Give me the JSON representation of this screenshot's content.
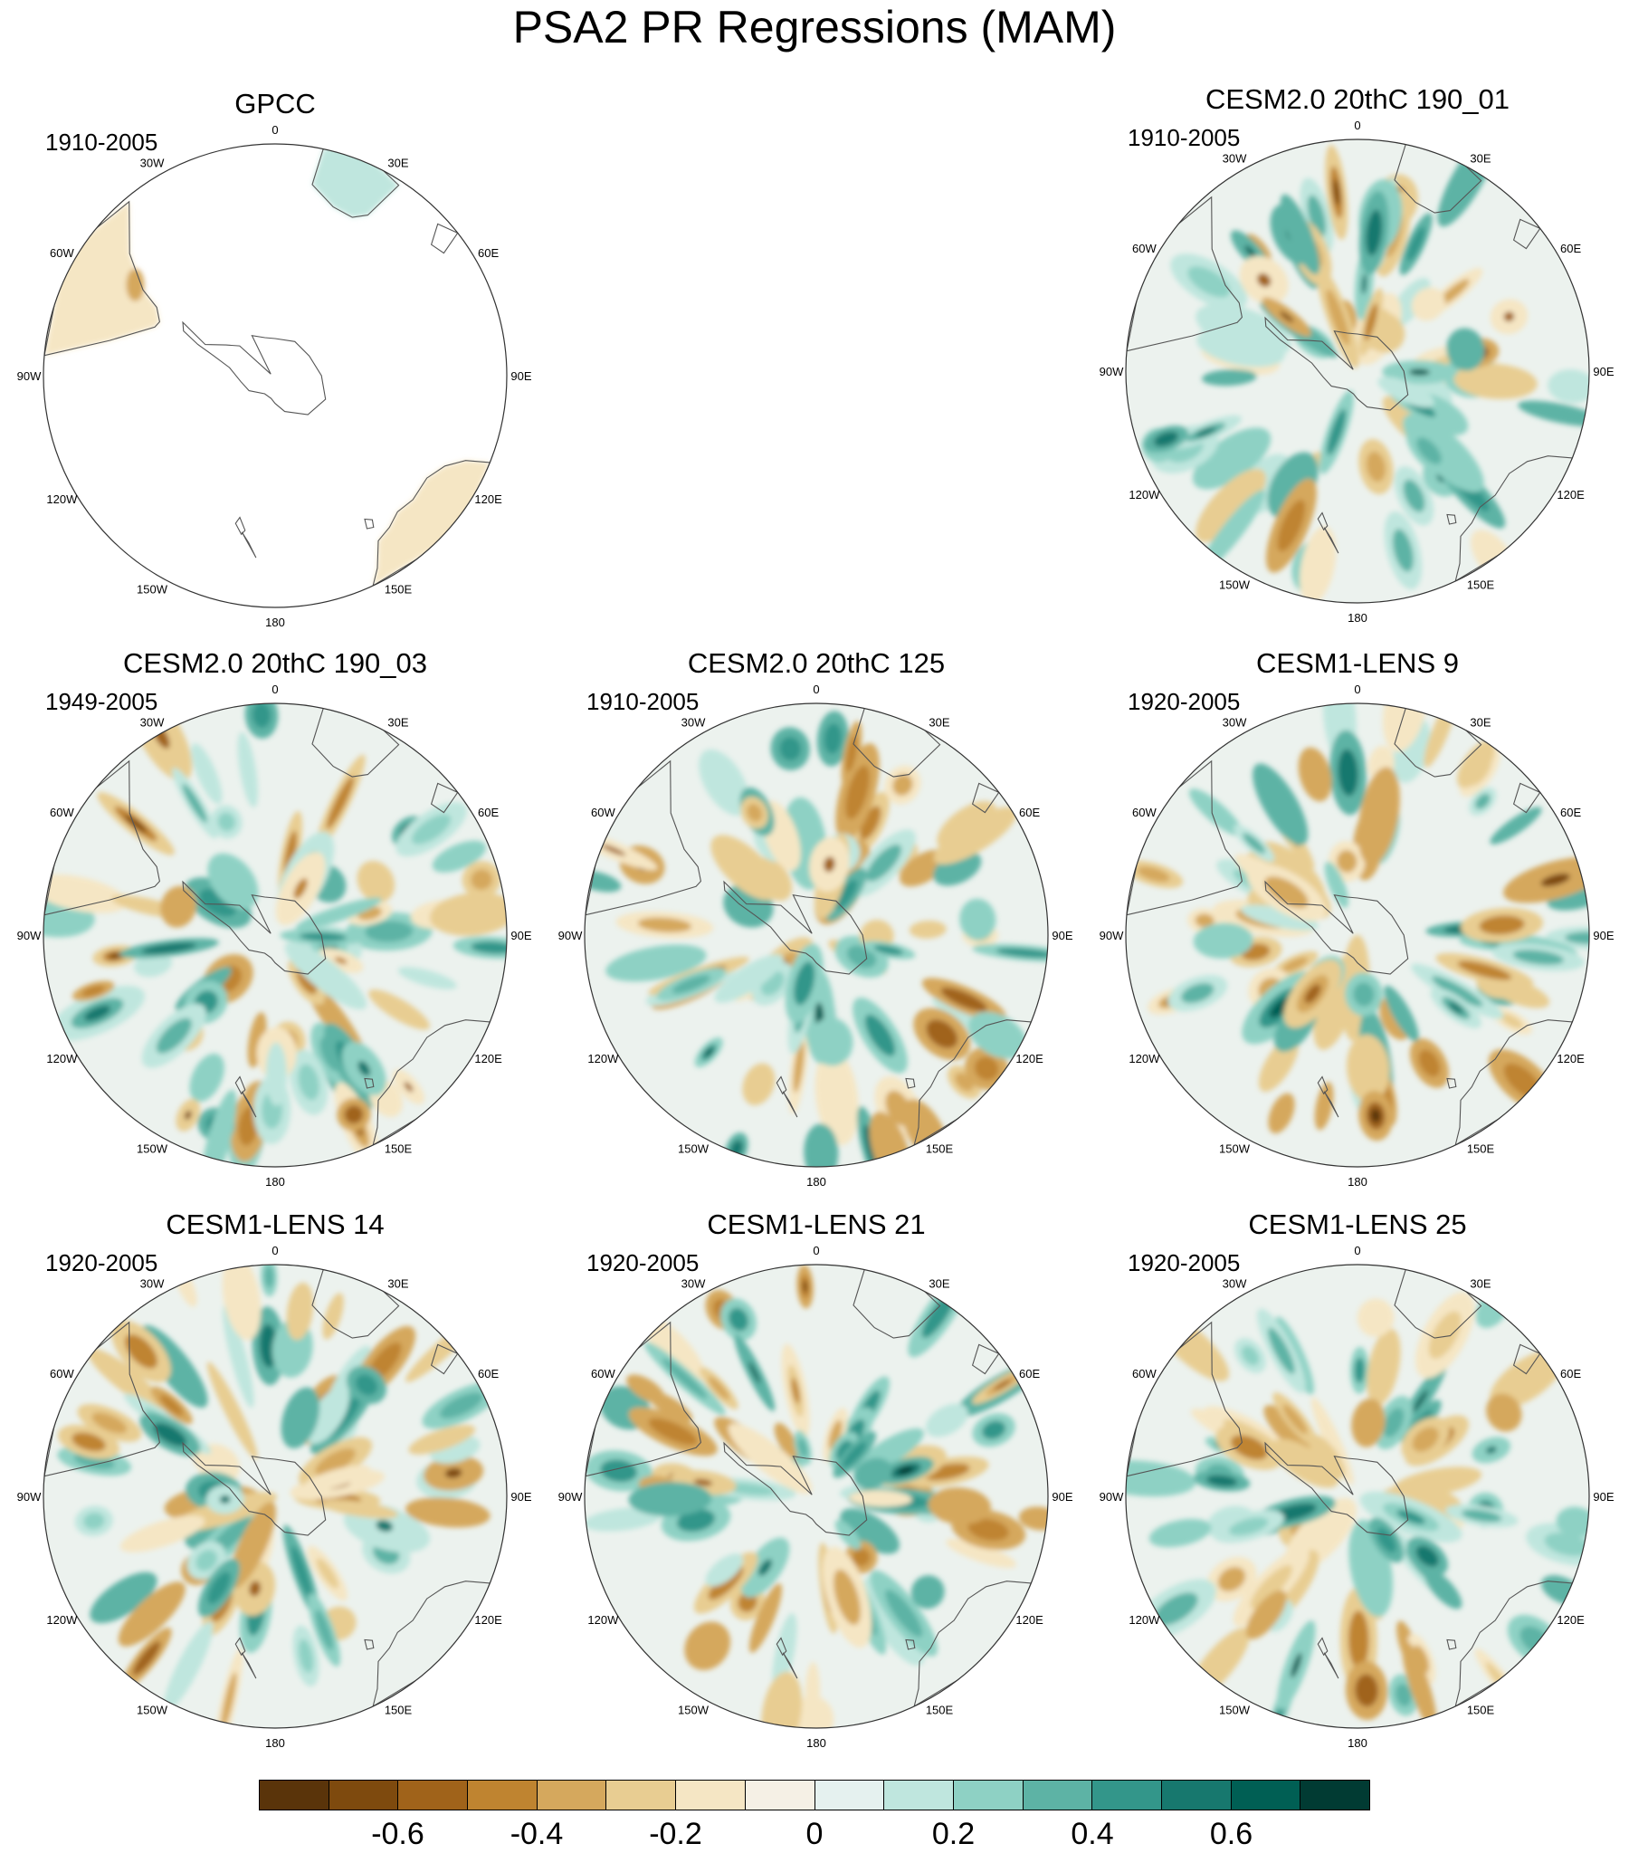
{
  "title": "PSA2 PR Regressions (MAM)",
  "longitude_labels": [
    "0",
    "30E",
    "60E",
    "90E",
    "120E",
    "150E",
    "180",
    "150W",
    "120W",
    "90W",
    "60W",
    "30W"
  ],
  "panels": [
    {
      "title": "GPCC",
      "period": "1910-2005",
      "style": "obs",
      "seed": 3
    },
    {
      "title": "CESM2.0 20thC 190_01",
      "period": "1910-2005",
      "style": "model",
      "seed": 11
    },
    {
      "title": "CESM2.0 20thC 190_03",
      "period": "1949-2005",
      "style": "model",
      "seed": 23
    },
    {
      "title": "CESM2.0 20thC 125",
      "period": "1910-2005",
      "style": "model",
      "seed": 37
    },
    {
      "title": "CESM1-LENS 9",
      "period": "1920-2005",
      "style": "model",
      "seed": 41
    },
    {
      "title": "CESM1-LENS 14",
      "period": "1920-2005",
      "style": "model",
      "seed": 53
    },
    {
      "title": "CESM1-LENS 21",
      "period": "1920-2005",
      "style": "model",
      "seed": 67
    },
    {
      "title": "CESM1-LENS 25",
      "period": "1920-2005",
      "style": "model",
      "seed": 79
    }
  ],
  "colorbar": {
    "colors": [
      "#5a340a",
      "#7e4a0e",
      "#a0631a",
      "#bf8430",
      "#d5a85d",
      "#e8cd92",
      "#f5e6c4",
      "#f5f0e5",
      "#e5f1ef",
      "#bfe6de",
      "#8ed1c4",
      "#5db3a5",
      "#33968a",
      "#17786e",
      "#005f54",
      "#013b33"
    ],
    "tick_labels": [
      "-0.6",
      "-0.4",
      "-0.2",
      "0",
      "0.2",
      "0.4",
      "0.6"
    ],
    "tick_values": [
      -0.6,
      -0.4,
      -0.2,
      0,
      0.2,
      0.4,
      0.6
    ],
    "min": -0.8,
    "max": 0.8
  }
}
